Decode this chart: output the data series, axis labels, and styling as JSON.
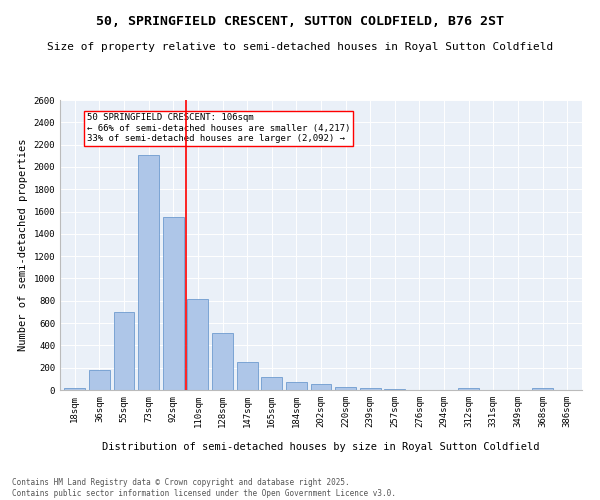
{
  "title": "50, SPRINGFIELD CRESCENT, SUTTON COLDFIELD, B76 2ST",
  "subtitle": "Size of property relative to semi-detached houses in Royal Sutton Coldfield",
  "xlabel": "Distribution of semi-detached houses by size in Royal Sutton Coldfield",
  "ylabel": "Number of semi-detached properties",
  "categories": [
    "18sqm",
    "36sqm",
    "55sqm",
    "73sqm",
    "92sqm",
    "110sqm",
    "128sqm",
    "147sqm",
    "165sqm",
    "184sqm",
    "202sqm",
    "220sqm",
    "239sqm",
    "257sqm",
    "276sqm",
    "294sqm",
    "312sqm",
    "331sqm",
    "349sqm",
    "368sqm",
    "386sqm"
  ],
  "values": [
    20,
    175,
    700,
    2110,
    1550,
    820,
    510,
    250,
    120,
    75,
    55,
    30,
    15,
    5,
    0,
    0,
    15,
    0,
    0,
    15,
    0
  ],
  "bar_color": "#aec6e8",
  "bar_edge_color": "#5b8fc9",
  "vline_color": "red",
  "vline_index": 5,
  "annotation_text": "50 SPRINGFIELD CRESCENT: 106sqm\n← 66% of semi-detached houses are smaller (4,217)\n33% of semi-detached houses are larger (2,092) →",
  "annotation_box_color": "white",
  "annotation_box_edge_color": "red",
  "ylim": [
    0,
    2600
  ],
  "yticks": [
    0,
    200,
    400,
    600,
    800,
    1000,
    1200,
    1400,
    1600,
    1800,
    2000,
    2200,
    2400,
    2600
  ],
  "bg_color": "#eaf0f8",
  "footer_text": "Contains HM Land Registry data © Crown copyright and database right 2025.\nContains public sector information licensed under the Open Government Licence v3.0.",
  "title_fontsize": 9.5,
  "subtitle_fontsize": 8,
  "axis_label_fontsize": 7.5,
  "tick_fontsize": 6.5,
  "annotation_fontsize": 6.5,
  "footer_fontsize": 5.5
}
